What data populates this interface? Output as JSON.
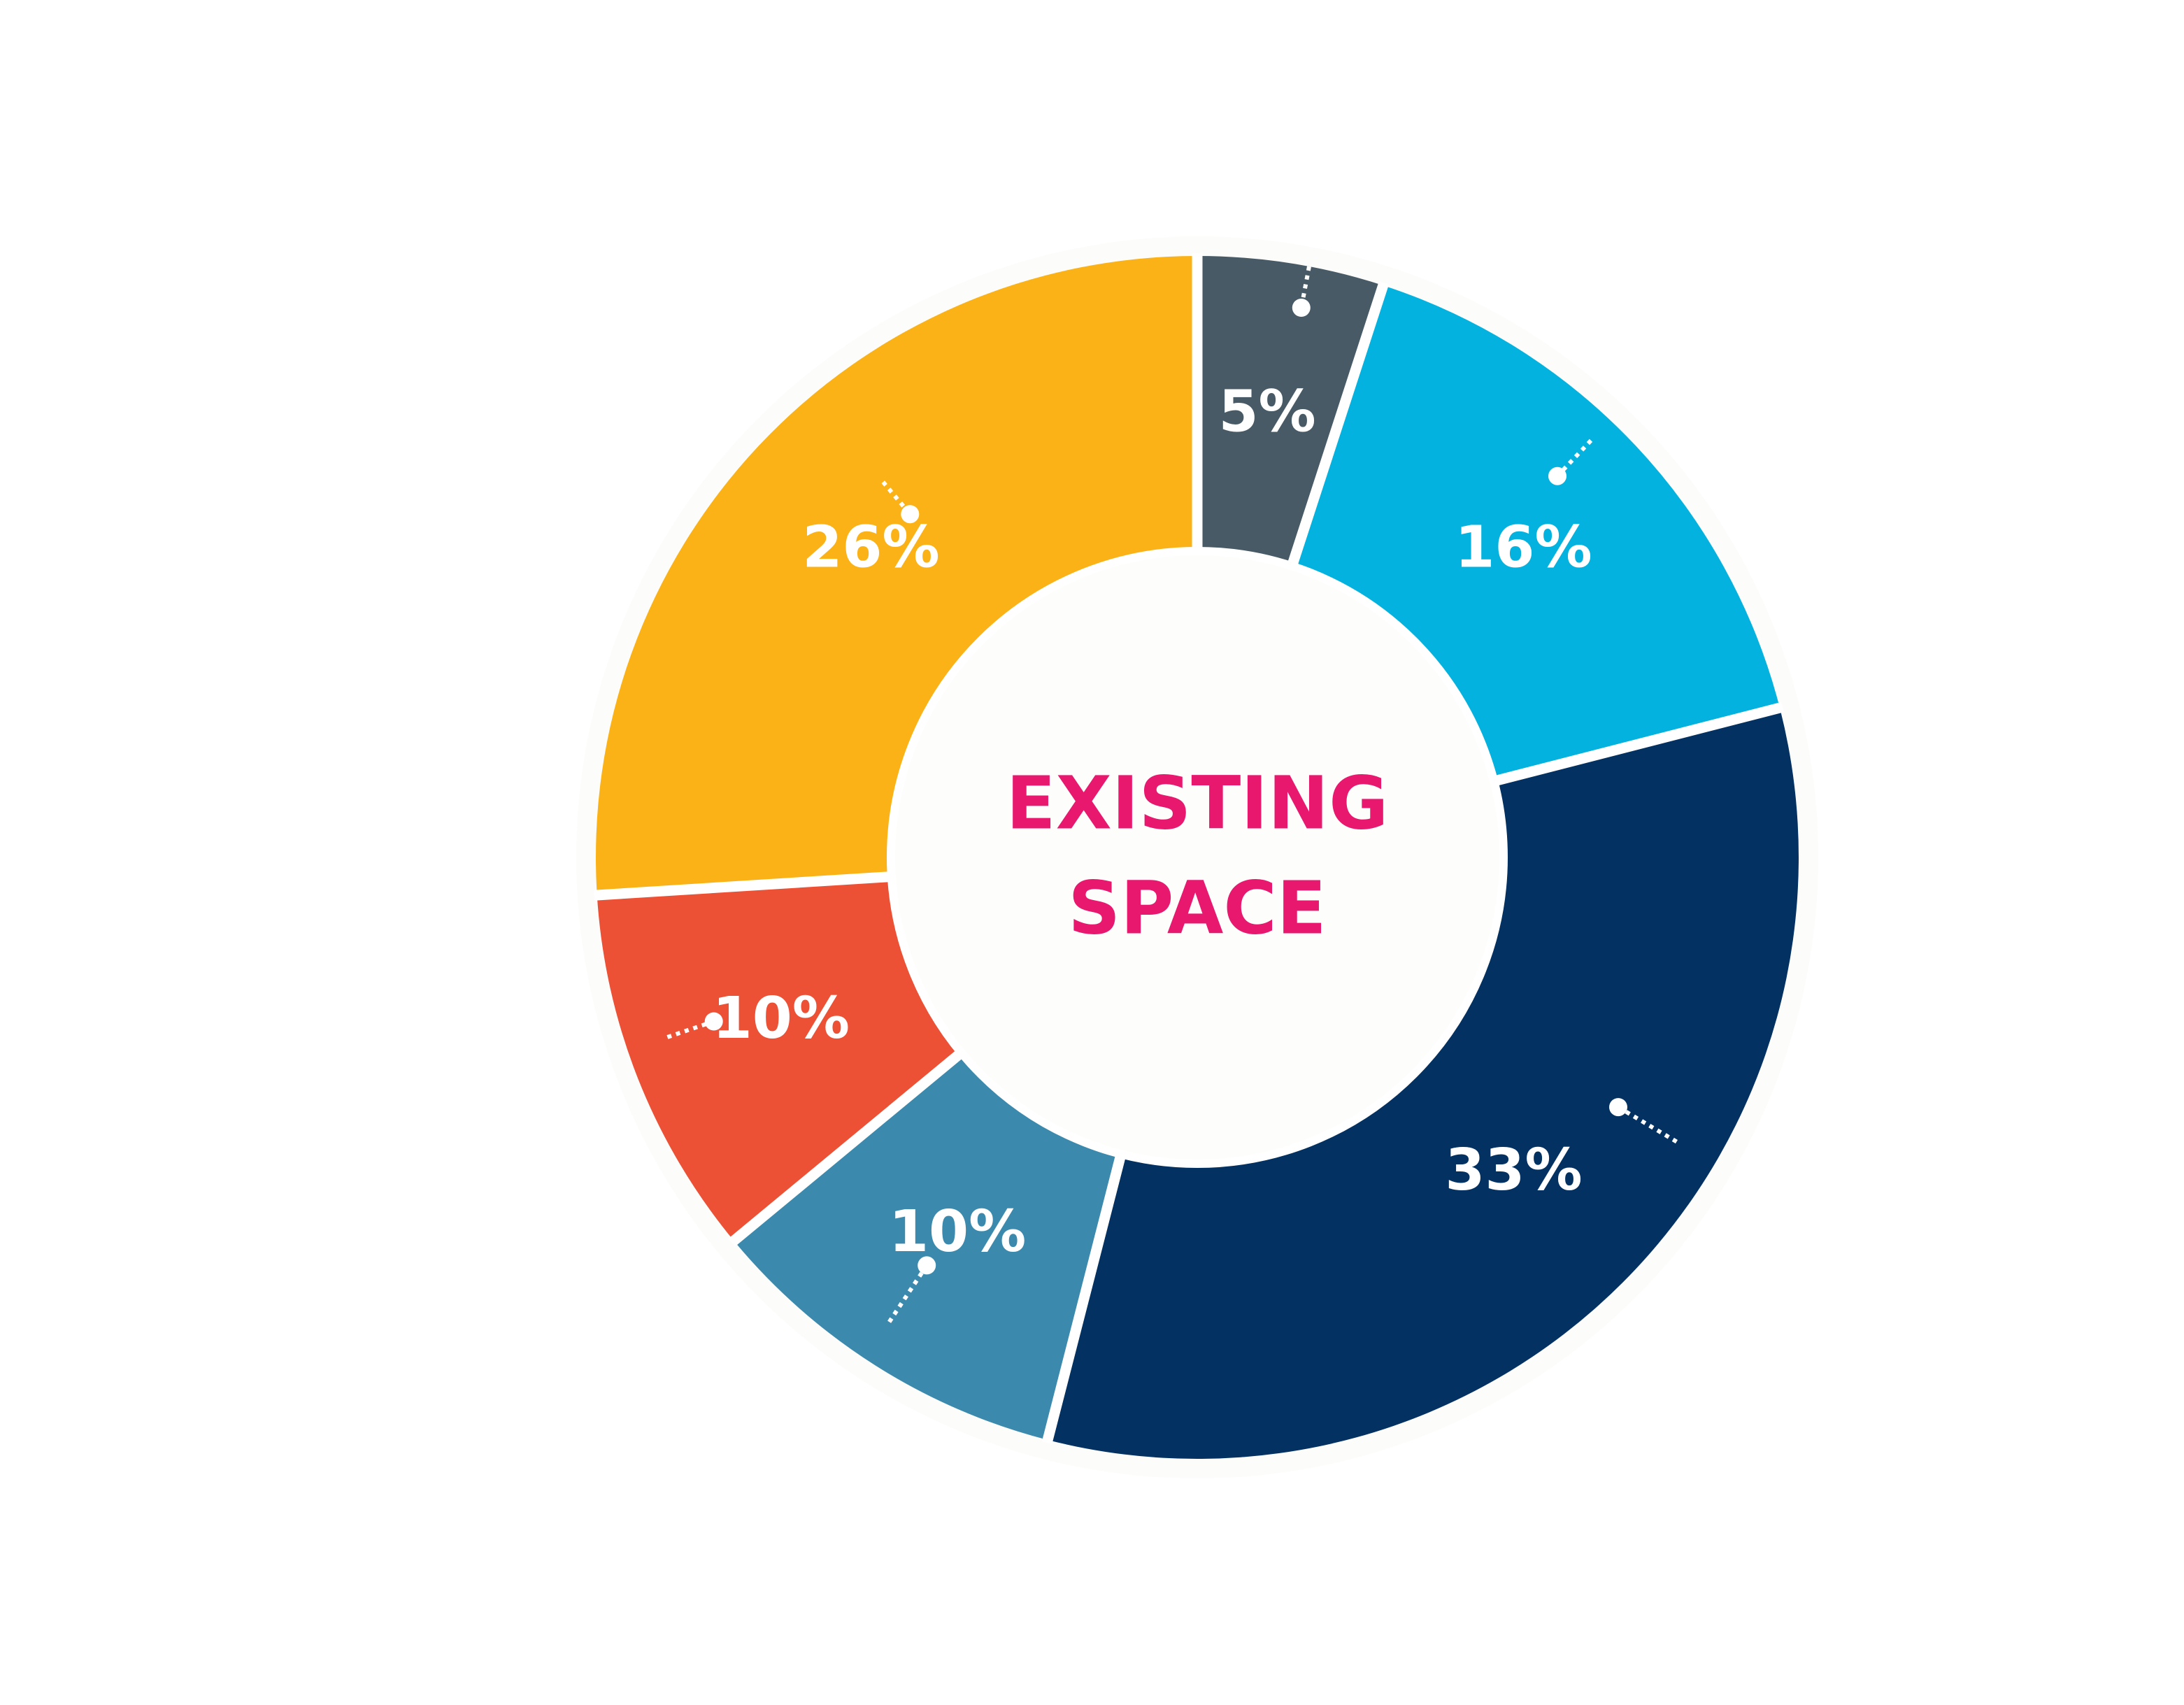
{
  "chart_data": {
    "type": "pie",
    "style": "donut",
    "center_label": [
      "EXISTING",
      "SPACE"
    ],
    "center_label_color": "#E8186F",
    "hole_color": "#FDFDFB",
    "start": "top, clockwise",
    "slices": [
      {
        "value": 5,
        "label": "5%",
        "color": "#485A66"
      },
      {
        "value": 16,
        "label": "16%",
        "color": "#04B2DF"
      },
      {
        "value": 33,
        "label": "33%",
        "color": "#033162"
      },
      {
        "value": 10,
        "label": "10%",
        "color": "#3B8AAE"
      },
      {
        "value": 10,
        "label": "10%",
        "color": "#EC5035"
      },
      {
        "value": 26,
        "label": "26%",
        "color": "#FBB217"
      }
    ],
    "legend": "none",
    "grid": false
  }
}
